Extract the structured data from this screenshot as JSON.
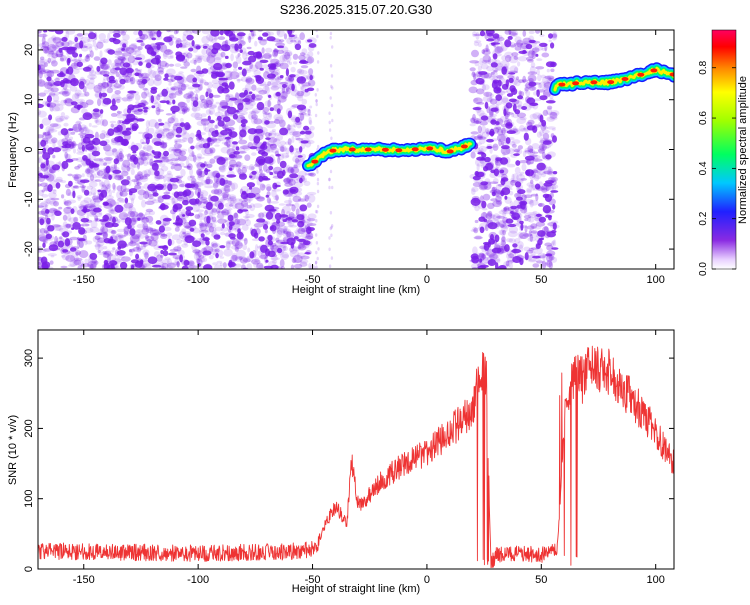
{
  "figure_title": "S236.2025.315.07.20.G30",
  "colors": {
    "snr_line": "#ee3333",
    "noise_speckle": "#7a1fe8",
    "axis": "#000000"
  },
  "chart_data": [
    {
      "type": "heatmap",
      "title": "S236.2025.315.07.20.G30",
      "xlabel": "Height of straight line (km)",
      "ylabel": "Frequency (Hz)",
      "xlim": [
        -170,
        108
      ],
      "ylim": [
        -24,
        24
      ],
      "xticks": [
        "-150",
        "-100",
        "-50",
        "0",
        "50",
        "100"
      ],
      "xtick_values": [
        -150,
        -100,
        -50,
        0,
        50,
        100
      ],
      "yticks": [
        "20",
        "10",
        "0",
        "-10",
        "-20"
      ],
      "ytick_values": [
        20,
        10,
        0,
        -10,
        -20
      ],
      "colorbar": {
        "label": "Normalized spectral amplitude",
        "range": [
          0,
          0.95
        ],
        "ticks": [
          "0.0",
          "0.2",
          "0.4",
          "0.6",
          "0.8"
        ],
        "tick_values": [
          0.0,
          0.2,
          0.4,
          0.6,
          0.8
        ]
      },
      "noise_regions_km": [
        [
          -170,
          -50
        ],
        [
          20,
          56
        ]
      ],
      "signal_trace": {
        "x": [
          -52,
          -45,
          -40,
          -30,
          -20,
          -10,
          0,
          10,
          19,
          58,
          70,
          80,
          90,
          100,
          108
        ],
        "freq_hz": [
          -3.5,
          -1.0,
          0,
          0,
          0,
          -0.2,
          0.3,
          -0.4,
          1.0,
          13,
          13.5,
          13.5,
          14.5,
          16,
          15
        ]
      }
    },
    {
      "type": "line",
      "xlabel": "Height of straight line (km)",
      "ylabel": "SNR (10 * v/v)",
      "xlim": [
        -170,
        108
      ],
      "ylim": [
        0,
        340
      ],
      "xticks": [
        "-150",
        "-100",
        "-50",
        "0",
        "50",
        "100"
      ],
      "xtick_values": [
        -150,
        -100,
        -50,
        0,
        50,
        100
      ],
      "yticks": [
        "0",
        "100",
        "200",
        "300"
      ],
      "ytick_values": [
        0,
        100,
        200,
        300
      ],
      "series": [
        {
          "name": "SNR",
          "x": [
            -170,
            -150,
            -100,
            -60,
            -48,
            -45,
            -40,
            -35,
            -33,
            -30,
            -25,
            -20,
            -10,
            0,
            10,
            20,
            23,
            26,
            28,
            30,
            40,
            50,
            57,
            60,
            63,
            70,
            80,
            90,
            100,
            108
          ],
          "y": [
            25,
            25,
            22,
            25,
            28,
            60,
            90,
            65,
            155,
            90,
            105,
            125,
            150,
            165,
            195,
            225,
            280,
            270,
            5,
            20,
            22,
            20,
            25,
            210,
            265,
            285,
            280,
            240,
            195,
            150
          ]
        }
      ]
    }
  ]
}
